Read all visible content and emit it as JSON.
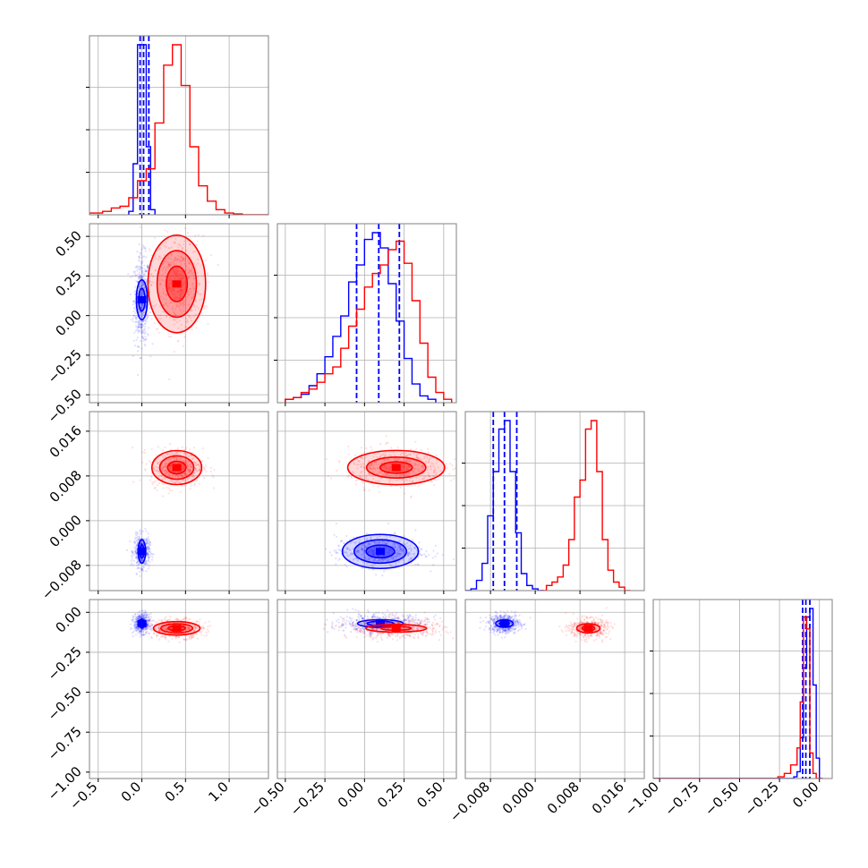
{
  "chart_data": {
    "type": "scatter",
    "title": "",
    "description_colors": {
      "series_a": "#0000ff",
      "series_b": "#ff0000"
    },
    "parameters": [
      {
        "xlim": [
          -0.6,
          1.45
        ],
        "ticks": [
          -0.5,
          0.0,
          0.5,
          1.0
        ],
        "labels": [
          "−0.5",
          "0.0",
          "0.5",
          "1.0"
        ]
      },
      {
        "xlim": [
          -0.55,
          0.58
        ],
        "ticks": [
          -0.5,
          -0.25,
          0.0,
          0.25,
          0.5
        ],
        "labels": [
          "−0.50",
          "−0.25",
          "0.00",
          "0.25",
          "0.50"
        ]
      },
      {
        "xlim": [
          -0.0125,
          0.0195
        ],
        "ticks": [
          -0.008,
          0.0,
          0.008,
          0.016
        ],
        "labels": [
          "−0.008",
          "0.000",
          "0.008",
          "0.016"
        ]
      },
      {
        "xlim": [
          -1.04,
          0.08
        ],
        "ticks": [
          -1.0,
          -0.75,
          -0.5,
          -0.25,
          0.0
        ],
        "labels": [
          "−1.00",
          "−0.75",
          "−0.50",
          "−0.25",
          "0.00"
        ]
      }
    ],
    "grid": true,
    "series": [
      {
        "color": "#0000ff",
        "mean": [
          0.0,
          0.1,
          -0.0055,
          -0.07
        ],
        "sd": [
          0.045,
          0.14,
          0.0014,
          0.03
        ],
        "quantile_lines": [
          [
            -0.02,
            0.02,
            0.08
          ],
          [
            -0.05,
            0.09,
            0.22
          ],
          [
            -0.0075,
            -0.0055,
            -0.0033
          ],
          [
            -0.105,
            -0.085,
            -0.06
          ]
        ],
        "histograms": [
          {
            "edges": [
              -0.15,
              -0.1,
              -0.05,
              0.0,
              0.05,
              0.1,
              0.15
            ],
            "counts": [
              0.02,
              0.3,
              1.0,
              1.0,
              0.4,
              0.03
            ],
            "span": [
              0.0,
              1.0
            ]
          },
          {
            "edges": [
              -0.5,
              -0.45,
              -0.4,
              -0.35,
              -0.3,
              -0.25,
              -0.2,
              -0.15,
              -0.1,
              -0.05,
              0.0,
              0.05,
              0.1,
              0.15,
              0.2,
              0.25,
              0.3,
              0.35,
              0.4,
              0.45
            ],
            "counts": [
              0.02,
              0.03,
              0.05,
              0.1,
              0.17,
              0.27,
              0.39,
              0.51,
              0.71,
              0.81,
              0.96,
              1.0,
              0.91,
              0.7,
              0.48,
              0.26,
              0.11,
              0.04,
              0.02
            ]
          },
          {
            "edges": [
              -0.0125,
              -0.0115,
              -0.0105,
              -0.0095,
              -0.0085,
              -0.0075,
              -0.0065,
              -0.0055,
              -0.0045,
              -0.0035,
              -0.0025,
              -0.0015,
              -0.0005,
              0.0005,
              0.0015
            ],
            "counts": [
              0.0,
              0.01,
              0.06,
              0.16,
              0.44,
              0.7,
              0.95,
              1.0,
              0.7,
              0.34,
              0.1,
              0.03,
              0.01,
              0.0
            ]
          },
          {
            "edges": [
              -1.04,
              -0.16,
              -0.14,
              -0.12,
              -0.1,
              -0.08,
              -0.06,
              -0.04,
              -0.02,
              0.0,
              0.02
            ],
            "counts": [
              0.0,
              0.01,
              0.04,
              0.24,
              0.65,
              0.95,
              1.0,
              0.55,
              0.12,
              0.0
            ]
          }
        ],
        "contours": [
          {
            "x": 0.0,
            "y": 1,
            "rx": 0.045,
            "ry": 0.09,
            "levels": [
              0.8,
              1.4
            ]
          },
          {
            "x": 0.0,
            "y": 2,
            "rx": 0.03,
            "ry": 0.0015,
            "levels": [
              0.8,
              1.4
            ]
          },
          {
            "x": 0.0,
            "y": 3,
            "rx": 0.02,
            "ry": 0.02,
            "levels": [
              0.8,
              1.4
            ]
          },
          {
            "x": 1,
            "y": 2,
            "rx": 0.15,
            "ry": 0.0019,
            "levels": [
              0.6,
              1.1,
              1.6
            ]
          },
          {
            "x": 1,
            "y": 3,
            "rx": 0.12,
            "ry": 0.02,
            "levels": [
              0.7,
              1.2
            ]
          },
          {
            "x": 2,
            "y": 3,
            "rx": 0.0012,
            "ry": 0.018,
            "levels": [
              0.7,
              1.3
            ]
          }
        ]
      },
      {
        "color": "#ff0000",
        "mean": [
          0.4,
          0.2,
          0.0095,
          -0.1
        ],
        "sd": [
          0.15,
          0.15,
          0.0017,
          0.03
        ],
        "histograms": [
          {
            "edges": [
              -0.6,
              -0.45,
              -0.35,
              -0.25,
              -0.15,
              -0.05,
              0.05,
              0.15,
              0.25,
              0.35,
              0.45,
              0.55,
              0.65,
              0.75,
              0.85,
              0.95,
              1.05,
              1.15,
              1.45
            ],
            "counts": [
              0.01,
              0.02,
              0.04,
              0.05,
              0.1,
              0.2,
              0.27,
              0.54,
              0.88,
              1.0,
              0.76,
              0.4,
              0.17,
              0.08,
              0.03,
              0.01,
              0.005,
              0.0
            ]
          },
          {
            "edges": [
              -0.5,
              -0.45,
              -0.4,
              -0.35,
              -0.3,
              -0.25,
              -0.2,
              -0.15,
              -0.1,
              -0.05,
              0.0,
              0.05,
              0.1,
              0.15,
              0.2,
              0.25,
              0.3,
              0.35,
              0.4,
              0.45,
              0.5,
              0.55
            ],
            "counts": [
              0.02,
              0.03,
              0.06,
              0.08,
              0.12,
              0.17,
              0.21,
              0.32,
              0.45,
              0.55,
              0.68,
              0.76,
              0.81,
              0.9,
              0.95,
              0.82,
              0.6,
              0.35,
              0.15,
              0.06,
              0.02
            ]
          },
          {
            "edges": [
              0.001,
              0.002,
              0.003,
              0.004,
              0.005,
              0.006,
              0.007,
              0.008,
              0.009,
              0.01,
              0.011,
              0.012,
              0.013,
              0.014,
              0.015,
              0.016,
              0.017
            ],
            "counts": [
              0.0,
              0.03,
              0.05,
              0.08,
              0.15,
              0.3,
              0.55,
              0.65,
              0.95,
              1.0,
              0.7,
              0.3,
              0.12,
              0.05,
              0.02,
              0.0
            ]
          },
          {
            "edges": [
              -1.04,
              -0.26,
              -0.22,
              -0.18,
              -0.14,
              -0.12,
              -0.1,
              -0.08,
              -0.06,
              -0.04,
              -0.02,
              0.02
            ],
            "counts": [
              0.0,
              0.01,
              0.03,
              0.08,
              0.18,
              0.45,
              0.95,
              0.88,
              0.15,
              0.03,
              0.0
            ]
          }
        ],
        "contours": [
          {
            "x": 0,
            "y": 1,
            "rx": 0.15,
            "ry": 0.14,
            "levels": [
              0.8,
              1.5,
              2.2
            ]
          },
          {
            "x": 0,
            "y": 2,
            "rx": 0.15,
            "ry": 0.0016,
            "levels": [
              0.7,
              1.3,
              1.9
            ]
          },
          {
            "x": 0,
            "y": 3,
            "rx": 0.14,
            "ry": 0.022,
            "levels": [
              0.7,
              1.3,
              1.9
            ]
          },
          {
            "x": 1,
            "y": 2,
            "rx": 0.17,
            "ry": 0.0017,
            "levels": [
              0.6,
              1.1,
              1.8
            ]
          },
          {
            "x": 1,
            "y": 3,
            "rx": 0.16,
            "ry": 0.02,
            "levels": [
              0.6,
              1.2
            ]
          },
          {
            "x": 2,
            "y": 3,
            "rx": 0.0016,
            "ry": 0.022,
            "levels": [
              0.7,
              1.3
            ]
          }
        ]
      }
    ]
  }
}
